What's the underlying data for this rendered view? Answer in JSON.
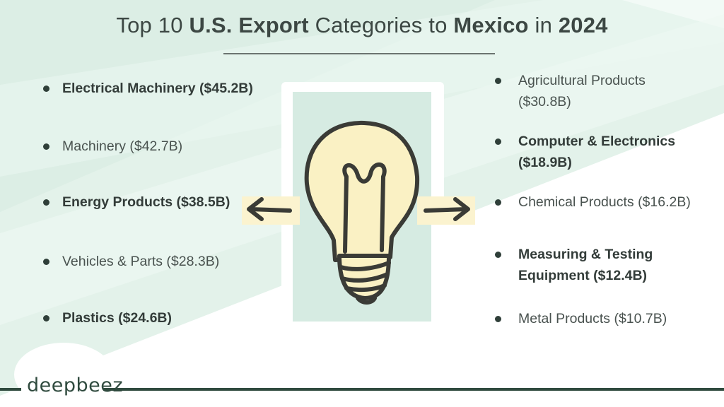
{
  "title": {
    "parts": [
      {
        "text": "Top 10 ",
        "bold": false
      },
      {
        "text": "U.S. Export",
        "bold": true
      },
      {
        "text": " Categories to ",
        "bold": false
      },
      {
        "text": "Mexico",
        "bold": true
      },
      {
        "text": " in ",
        "bold": false
      },
      {
        "text": "2024",
        "bold": true
      }
    ]
  },
  "left_items": [
    {
      "line1": "Electrical Machinery ($45.2B)",
      "line2": "",
      "bold": true
    },
    {
      "line1": "Machinery ($42.7B)",
      "line2": "",
      "bold": false
    },
    {
      "line1": "Energy Products ($38.5B)",
      "line2": "",
      "bold": true
    },
    {
      "line1": "Vehicles & Parts ($28.3B)",
      "line2": "",
      "bold": false
    },
    {
      "line1": "Plastics ($24.6B)",
      "line2": "",
      "bold": true
    }
  ],
  "right_items": [
    {
      "line1": "Agricultural Products",
      "line2": "($30.8B)",
      "bold": false
    },
    {
      "line1": "Computer & Electronics",
      "line2": "($18.9B)",
      "bold": true
    },
    {
      "line1": "Chemical Products ($16.2B)",
      "line2": "",
      "bold": false
    },
    {
      "line1": "Measuring & Testing",
      "line2": "Equipment ($12.4B)",
      "bold": true
    },
    {
      "line1": "Metal Products ($10.7B)",
      "line2": "",
      "bold": false
    }
  ],
  "brand": "deepbeez",
  "icons": [
    "lightbulb-icon",
    "arrow-left-icon",
    "arrow-right-icon"
  ],
  "colors": {
    "accent_mint": "#dcefe6",
    "dark_green": "#2f4a3e",
    "bulb_yellow": "#faf1c4",
    "ink": "#3a3b36"
  }
}
